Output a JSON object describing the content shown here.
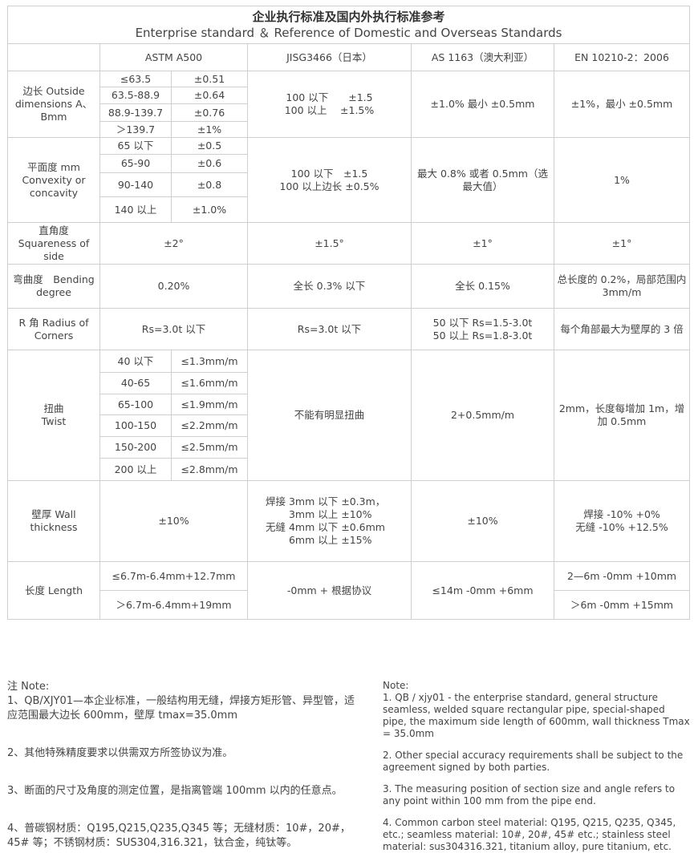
{
  "title": {
    "zh": "企业执行标准及国内外执行标准参考",
    "en": "Enterprise standard ＆ Reference of Domestic and Overseas Standards"
  },
  "headers": [
    "ASTM A500",
    "JISG3466（日本）",
    "AS 1163（澳大利亚）",
    "EN 10210-2：2006"
  ],
  "outside": {
    "label": "边长 Outside dimensions A、Bmm",
    "astm": [
      [
        "≤63.5",
        "±0.51"
      ],
      [
        "63.5-88.9",
        "±0.64"
      ],
      [
        "88.9-139.7",
        "±0.76"
      ],
      [
        "＞139.7",
        "±1%"
      ]
    ],
    "jis": "100 以下　　±1.5\n100 以上　 ±1.5%",
    "as": "±1.0%  最小 ±0.5mm",
    "en": "±1%，最小 ±0.5mm"
  },
  "flatness": {
    "label": "平面度 mm Convexity or concavity",
    "astm": [
      [
        "65 以下",
        "±0.5"
      ],
      [
        "65-90",
        "±0.6"
      ],
      [
        "90-140",
        "±0.8"
      ],
      [
        "140 以上",
        "±1.0%"
      ]
    ],
    "jis": "100 以下　±1.5\n100 以上边长 ±0.5%",
    "as": "最大 0.8% 或者 0.5mm（选最大值）",
    "en": "1%"
  },
  "squareness": {
    "label": "直角度 Squareness of side",
    "astm": "±2°",
    "jis": "±1.5°",
    "as": "±1°",
    "en": "±1°"
  },
  "bending": {
    "label": "弯曲度　Bending degree",
    "astm": "0.20%",
    "jis": "全长 0.3% 以下",
    "as": "全长 0.15%",
    "en": "总长度的 0.2%，局部范围内 3mm/m"
  },
  "radius": {
    "label": "R 角 Radius of Corners",
    "astm": "Rs=3.0t 以下",
    "jis": "Rs=3.0t 以下",
    "as": "50 以下 Rs=1.5-3.0t\n50 以上 Rs=1.8-3.0t",
    "en": "每个角部最大为壁厚的 3 倍"
  },
  "twist": {
    "label": "扭曲\nTwist",
    "astm": [
      [
        "40 以下",
        "≤1.3mm/m"
      ],
      [
        "40-65",
        "≤1.6mm/m"
      ],
      [
        "65-100",
        "≤1.9mm/m"
      ],
      [
        "100-150",
        "≤2.2mm/m"
      ],
      [
        "150-200",
        "≤2.5mm/m"
      ],
      [
        "200 以上",
        "≤2.8mm/m"
      ]
    ],
    "jis": "不能有明显扭曲",
    "as": "2+0.5mm/m",
    "en": "2mm，长度每增加 1m，增加 0.5mm"
  },
  "wall": {
    "label": "壁厚 Wall thickness",
    "astm": "±10%",
    "jis": "焊接 3mm 以下 ±0.3m，\n　　 3mm 以上 ±10%\n无缝 4mm 以下 ±0.6mm\n　　 6mm 以上 ±15%",
    "as": "±10%",
    "en": "焊接  -10% +0%\n无缝  -10% +12.5%"
  },
  "length": {
    "label": "长度 Length",
    "astm": [
      "≤6.7m-6.4mm+12.7mm",
      "＞6.7m-6.4mm+19mm"
    ],
    "jis": "-0mm  + 根据协议",
    "as": "≤14m -0mm +6mm",
    "en": [
      "2—6m  -0mm  +10mm",
      "＞6m  -0mm  +15mm"
    ]
  },
  "notes_zh": [
    "注 Note:",
    "1、QB/XJY01—本企业标准，一般结构用无缝，焊接方矩形管、异型管，适应范围最大边长 600mm，壁厚 tmax=35.0mm",
    "2、其他特殊精度要求以供需双方所签协议为准。",
    "3、断面的尺寸及角度的测定位置，是指离管端 100mm 以内的任意点。",
    "4、普碳钢材质：Q195,Q215,Q235,Q345 等；无缝材质：10#，20#，45# 等；不锈钢材质：SUS304,316.321，钛合金，纯钛等。"
  ],
  "notes_en": [
    "Note:",
    "1. QB / xjy01 - the enterprise standard, general structure seamless, welded square rectangular pipe, special-shaped pipe, the maximum side length of 600mm, wall thickness Tmax = 35.0mm",
    "2. Other special accuracy requirements shall be subject to the agreement signed by both parties.",
    "3. The measuring position of section size and angle refers to any point within 100 mm from the pipe end.",
    "4. Common carbon steel material: Q195, Q215, Q235, Q345, etc.; seamless material: 10#, 20#, 45# etc.; stainless steel material: sus304316.321, titanium alloy, pure titanium, etc."
  ]
}
